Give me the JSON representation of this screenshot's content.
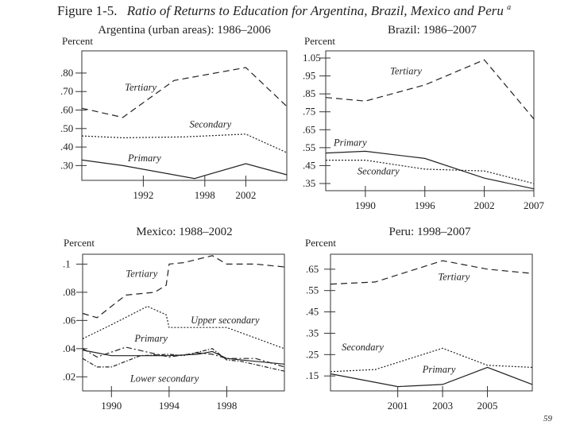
{
  "figure": {
    "title_prefix": "Figure 1-5.",
    "title_main": "Ratio of Returns to Education for Argentina, Brazil, Mexico and Peru",
    "title_superscript": "a"
  },
  "page_number": "59",
  "chart_data": [
    {
      "id": "argentina",
      "type": "line",
      "title": "Argentina (urban areas): 1986–2006",
      "ylabel": "Percent",
      "xlim": [
        1986,
        2006
      ],
      "ylim": [
        0.22,
        0.92
      ],
      "xticks": [
        1992,
        1998,
        2002
      ],
      "xtick_labels": [
        "1992",
        "1998",
        "2002"
      ],
      "yticks": [
        0.3,
        0.4,
        0.5,
        0.6,
        0.7,
        0.8
      ],
      "ytick_labels": [
        ".30",
        ".40",
        ".50",
        ".60",
        ".70",
        ".80"
      ],
      "series": [
        {
          "name": "Tertiary",
          "style": "dashed",
          "x": [
            1986,
            1990,
            1995,
            2002,
            2006
          ],
          "y": [
            0.61,
            0.56,
            0.76,
            0.83,
            0.62
          ]
        },
        {
          "name": "Secondary",
          "style": "dotted",
          "x": [
            1986,
            1990,
            1996,
            2002,
            2006
          ],
          "y": [
            0.46,
            0.45,
            0.455,
            0.47,
            0.37
          ]
        },
        {
          "name": "Primary",
          "style": "solid",
          "x": [
            1986,
            1990,
            1997,
            2002,
            2006
          ],
          "y": [
            0.33,
            0.3,
            0.23,
            0.31,
            0.25
          ]
        }
      ],
      "labels": [
        {
          "text": "Tertiary",
          "x": 1990.2,
          "y": 0.705
        },
        {
          "text": "Secondary",
          "x": 1996.5,
          "y": 0.505
        },
        {
          "text": "Primary",
          "x": 1990.5,
          "y": 0.322
        }
      ]
    },
    {
      "id": "brazil",
      "type": "line",
      "title": "Brazil: 1986–2007",
      "ylabel": "Percent",
      "xlim": [
        1986,
        2007
      ],
      "ylim": [
        0.31,
        1.09
      ],
      "xticks": [
        1990,
        1996,
        2002,
        2007
      ],
      "xtick_labels": [
        "1990",
        "1996",
        "2002",
        "2007"
      ],
      "yticks": [
        0.35,
        0.45,
        0.55,
        0.65,
        0.75,
        0.85,
        0.95,
        1.05
      ],
      "ytick_labels": [
        ".35",
        ".45",
        ".55",
        ".65",
        ".75",
        ".85",
        ".95",
        "1.05"
      ],
      "series": [
        {
          "name": "Tertiary",
          "style": "dashed",
          "x": [
            1986,
            1990,
            1996,
            2002,
            2007
          ],
          "y": [
            0.83,
            0.81,
            0.9,
            1.04,
            0.71
          ]
        },
        {
          "name": "Primary",
          "style": "solid",
          "x": [
            1986,
            1990,
            1996,
            2002,
            2007
          ],
          "y": [
            0.52,
            0.53,
            0.49,
            0.38,
            0.32
          ]
        },
        {
          "name": "Secondary",
          "style": "dotted",
          "x": [
            1986,
            1990,
            1996,
            2002,
            2007
          ],
          "y": [
            0.48,
            0.48,
            0.43,
            0.42,
            0.35
          ]
        }
      ],
      "labels": [
        {
          "text": "Tertiary",
          "x": 1992.5,
          "y": 0.96
        },
        {
          "text": "Primary",
          "x": 1986.8,
          "y": 0.56
        },
        {
          "text": "Secondary",
          "x": 1989.2,
          "y": 0.4
        }
      ]
    },
    {
      "id": "mexico",
      "type": "line",
      "title": "Mexico: 1988–2002",
      "ylabel": "Percent",
      "xlim": [
        1988,
        2002
      ],
      "ylim": [
        0.01,
        0.107
      ],
      "xticks": [
        1990,
        1994,
        1998
      ],
      "xtick_labels": [
        "1990",
        "1994",
        "1998"
      ],
      "yticks": [
        0.02,
        0.04,
        0.06,
        0.08,
        0.1
      ],
      "ytick_labels": [
        ".02",
        ".04",
        ".06",
        ".08",
        ".1"
      ],
      "series": [
        {
          "name": "Tertiary",
          "style": "dashed",
          "x": [
            1988,
            1989,
            1991,
            1993,
            1993.8,
            1994,
            1995,
            1997,
            1998,
            2000,
            2002
          ],
          "y": [
            0.065,
            0.062,
            0.078,
            0.08,
            0.085,
            0.1,
            0.101,
            0.106,
            0.1,
            0.1,
            0.098
          ]
        },
        {
          "name": "Upper secondary",
          "style": "dotted",
          "x": [
            1988,
            1990,
            1992.5,
            1993.8,
            1994,
            1998,
            2002
          ],
          "y": [
            0.047,
            0.057,
            0.07,
            0.064,
            0.055,
            0.055,
            0.04
          ]
        },
        {
          "name": "Primary",
          "style": "dashdot",
          "x": [
            1988,
            1989,
            1991,
            1994,
            1996,
            1997,
            1998,
            2000,
            2002
          ],
          "y": [
            0.04,
            0.034,
            0.041,
            0.034,
            0.037,
            0.036,
            0.033,
            0.033,
            0.027
          ]
        },
        {
          "name": "Lower secondary",
          "style": "dashdot2",
          "x": [
            1988,
            1989,
            1990,
            1992,
            1994,
            1995,
            1997,
            1998,
            1999,
            2002
          ],
          "y": [
            0.033,
            0.027,
            0.027,
            0.035,
            0.036,
            0.035,
            0.04,
            0.032,
            0.031,
            0.024
          ]
        },
        {
          "name": "Primary (solid)",
          "style": "solid",
          "x": [
            1988,
            1990,
            1994,
            1996,
            1997,
            1998,
            2000,
            2002
          ],
          "y": [
            0.039,
            0.035,
            0.035,
            0.036,
            0.038,
            0.033,
            0.031,
            0.029
          ]
        }
      ],
      "labels": [
        {
          "text": "Tertiary",
          "x": 1991.0,
          "y": 0.091
        },
        {
          "text": "Upper secondary",
          "x": 1995.5,
          "y": 0.058
        },
        {
          "text": "Primary",
          "x": 1991.6,
          "y": 0.045
        },
        {
          "text": "Lower secondary",
          "x": 1991.3,
          "y": 0.0165
        }
      ]
    },
    {
      "id": "peru",
      "type": "line",
      "title": "Peru: 1998–2007",
      "ylabel": "Percent",
      "xlim": [
        1998,
        2007
      ],
      "ylim": [
        0.08,
        0.72
      ],
      "xticks": [
        2001,
        2003,
        2005
      ],
      "xtick_labels": [
        "2001",
        "2003",
        "2005"
      ],
      "yticks": [
        0.15,
        0.25,
        0.35,
        0.45,
        0.55,
        0.65
      ],
      "ytick_labels": [
        ".15",
        ".25",
        ".35",
        ".45",
        ".55",
        ".65"
      ],
      "series": [
        {
          "name": "Tertiary",
          "style": "dashed",
          "x": [
            1998,
            2000,
            2003,
            2005,
            2007
          ],
          "y": [
            0.58,
            0.59,
            0.69,
            0.65,
            0.63
          ]
        },
        {
          "name": "Secondary",
          "style": "dotted",
          "x": [
            1998,
            2000,
            2003,
            2005,
            2007
          ],
          "y": [
            0.17,
            0.18,
            0.28,
            0.2,
            0.19
          ]
        },
        {
          "name": "Primary",
          "style": "solid",
          "x": [
            1998,
            2001,
            2003,
            2005,
            2007
          ],
          "y": [
            0.16,
            0.1,
            0.11,
            0.19,
            0.11
          ]
        }
      ],
      "labels": [
        {
          "text": "Tertiary",
          "x": 2002.8,
          "y": 0.6
        },
        {
          "text": "Secondary",
          "x": 1998.5,
          "y": 0.27
        },
        {
          "text": "Primary",
          "x": 2002.1,
          "y": 0.165
        }
      ]
    }
  ]
}
